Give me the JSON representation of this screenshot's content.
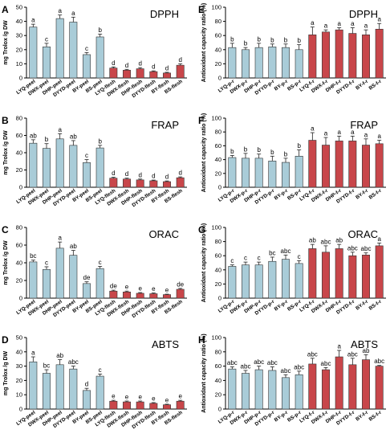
{
  "colors": {
    "peel": "#a9ccd8",
    "flesh": "#c8464a",
    "stroke": "#333333"
  },
  "chart_data": [
    {
      "panel": "A",
      "title": "DPPH",
      "type": "bar",
      "ylabel": "mg Trolox /g DW",
      "ylim": [
        0,
        50
      ],
      "yticks": [
        0,
        10,
        20,
        30,
        40,
        50
      ],
      "categories": [
        "LYQ-peel",
        "DWX-peel",
        "DHP-peel",
        "DYYD-peel",
        "BY-peel",
        "BS-peel",
        "LYQ-flesh",
        "DWX-flesh",
        "DHP-flesh",
        "DYYD-flesh",
        "BY-flesh",
        "BS-flesh"
      ],
      "values": [
        36,
        22,
        42,
        39.5,
        16.5,
        29,
        7,
        5.5,
        6.5,
        4.5,
        3.5,
        9
      ],
      "errors": [
        2,
        2.5,
        2.5,
        3.5,
        1.5,
        2,
        0.8,
        0.6,
        0.8,
        0.5,
        0.5,
        1
      ],
      "labels": [
        "a",
        "c",
        "a",
        "a",
        "c",
        "b",
        "d",
        "d",
        "d",
        "d",
        "d",
        "d"
      ]
    },
    {
      "panel": "B",
      "title": "FRAP",
      "type": "bar",
      "ylabel": "mg Trolox /g DW",
      "ylim": [
        0,
        80
      ],
      "yticks": [
        0,
        20,
        40,
        60,
        80
      ],
      "categories": [
        "LYQ-peel",
        "DWX-peel",
        "DHP-peel",
        "DYYD-peel",
        "BY-peel",
        "BS-peel",
        "LYQ-flesh",
        "DWX-flesh",
        "DHP-flesh",
        "DYYD-flesh",
        "BY-flesh",
        "BS-flesh"
      ],
      "values": [
        51,
        45,
        56,
        48.5,
        28.5,
        45.5,
        10.5,
        9.5,
        8.5,
        7.5,
        6.5,
        11
      ],
      "errors": [
        4,
        5.5,
        6,
        5.5,
        3.5,
        3,
        1,
        1,
        1,
        0.8,
        0.8,
        1
      ],
      "labels": [
        "ab",
        "b",
        "a",
        "ab",
        "c",
        "b",
        "d",
        "d",
        "d",
        "d",
        "d",
        "d"
      ]
    },
    {
      "panel": "C",
      "title": "ORAC",
      "type": "bar",
      "ylabel": "mg Trolox /g DW",
      "ylim": [
        0,
        80
      ],
      "yticks": [
        0,
        20,
        40,
        60,
        80
      ],
      "categories": [
        "LYQ-peel",
        "DWX-peel",
        "DHP-peel",
        "DYYD-peel",
        "BY-peel",
        "BS-peel",
        "LYQ-flesh",
        "DWX-flesh",
        "DHP-flesh",
        "DYYD-flesh",
        "BY-flesh",
        "BS-flesh"
      ],
      "values": [
        41,
        32.5,
        56.5,
        48.5,
        16.5,
        33.5,
        8,
        7,
        5.5,
        5,
        4,
        10
      ],
      "errors": [
        2,
        3,
        7,
        5.5,
        2,
        2.5,
        1,
        1,
        0.8,
        0.8,
        0.5,
        1
      ],
      "labels": [
        "bc",
        "c",
        "a",
        "ab",
        "de",
        "c",
        "de",
        "e",
        "e",
        "e",
        "e",
        "de"
      ]
    },
    {
      "panel": "D",
      "title": "ABTS",
      "type": "bar",
      "ylabel": "mg Trolox /g DW",
      "ylim": [
        0,
        50
      ],
      "yticks": [
        0,
        10,
        20,
        30,
        40,
        50
      ],
      "categories": [
        "LYQ-peel",
        "DWX-peel",
        "DHP-peel",
        "DYYD-peel",
        "BY-peel",
        "BS-peel",
        "LYQ-flesh",
        "DWX-flesh",
        "DHP-flesh",
        "DYYD-flesh",
        "BY-flesh",
        "BS-flesh"
      ],
      "values": [
        33,
        25,
        31,
        28,
        13,
        23,
        5.5,
        5,
        5,
        4,
        3,
        5.5
      ],
      "errors": [
        3.5,
        2.5,
        3.5,
        2,
        1.5,
        1.5,
        0.6,
        0.6,
        0.6,
        0.5,
        0.4,
        0.6
      ],
      "labels": [
        "a",
        "bc",
        "ab",
        "abc",
        "d",
        "c",
        "e",
        "e",
        "e",
        "e",
        "e",
        "e"
      ]
    },
    {
      "panel": "E",
      "title": "DPPH",
      "type": "bar",
      "ylabel": "Antioxidant capacity ratio (%)",
      "ylim": [
        0,
        100
      ],
      "yticks": [
        0,
        20,
        40,
        60,
        80,
        100
      ],
      "categories": [
        "LYQ-p-r",
        "DWX-p-r",
        "DHP-p-r",
        "DYYD-p-r",
        "BY-p-r",
        "BS-p-r",
        "LYQ-f-r",
        "DWX-f-r",
        "DHP-f-r",
        "DYYD-f-r",
        "BY-f-r",
        "BS-f-r"
      ],
      "values": [
        43,
        40,
        43,
        44,
        43,
        40,
        61,
        65,
        68,
        63,
        61,
        69
      ],
      "errors": [
        6,
        3,
        6,
        4,
        5,
        7,
        11,
        3,
        3,
        8,
        7,
        8
      ],
      "labels": [
        "b",
        "b",
        "b",
        "b",
        "b",
        "b",
        "a",
        "a",
        "a",
        "a",
        "a",
        "a"
      ]
    },
    {
      "panel": "F",
      "title": "FRAP",
      "type": "bar",
      "ylabel": "Antioxidant capacity ratio (%)",
      "ylim": [
        0,
        100
      ],
      "yticks": [
        0,
        20,
        40,
        60,
        80,
        100
      ],
      "categories": [
        "LYQ-p-r",
        "DWX-p-r",
        "DHP-p-r",
        "DYYD-p-r",
        "BY-p-r",
        "BS-p-r",
        "LYQ-f-r",
        "DWX-f-r",
        "DHP-f-r",
        "DYYD-f-r",
        "BY-f-r",
        "BS-f-r"
      ],
      "values": [
        43,
        42,
        42,
        38,
        36,
        45,
        68,
        61,
        67,
        67,
        61,
        63
      ],
      "errors": [
        3,
        7,
        6,
        7,
        6,
        9,
        11,
        11,
        7,
        7,
        9,
        5
      ],
      "labels": [
        "b",
        "b",
        "b",
        "b",
        "b",
        "b",
        "a",
        "a",
        "a",
        "a",
        "a",
        "a"
      ]
    },
    {
      "panel": "G",
      "title": "ORAC",
      "type": "bar",
      "ylabel": "Antioxidant capacity ratio (%)",
      "ylim": [
        0,
        100
      ],
      "yticks": [
        0,
        20,
        40,
        60,
        80,
        100
      ],
      "categories": [
        "LYQ-p-r",
        "DWX-p-r",
        "DHP-p-r",
        "DYYD-p-r",
        "BY-p-r",
        "BS-p-r",
        "LYQ-f-r",
        "DWX-f-r",
        "DHP-f-r",
        "DYYD-f-r",
        "BY-f-r",
        "BS-f-r"
      ],
      "values": [
        45,
        47,
        47,
        52,
        55,
        49,
        70,
        65,
        70,
        60,
        61,
        74
      ],
      "errors": [
        2,
        4,
        4,
        6,
        6,
        4,
        6,
        9,
        6,
        5,
        3,
        4
      ],
      "labels": [
        "c",
        "c",
        "c",
        "bc",
        "abc",
        "c",
        "ab",
        "abc",
        "ab",
        "abc",
        "abc",
        "a"
      ]
    },
    {
      "panel": "H",
      "title": "ABTS",
      "type": "bar",
      "ylabel": "Antioxidant capacity ratio (%)",
      "ylim": [
        0,
        100
      ],
      "yticks": [
        0,
        20,
        40,
        60,
        80,
        100
      ],
      "categories": [
        "LYQ-p-r",
        "DWX-p-r",
        "DHP-p-r",
        "DYYD-p-r",
        "BY-p-r",
        "BS-p-r",
        "LYQ-f-r",
        "DWX-f-r",
        "DHP-f-r",
        "DYYD-f-r",
        "BY-f-r",
        "BS-f-r"
      ],
      "values": [
        56,
        50,
        55,
        54,
        44,
        48,
        63,
        55,
        73,
        62,
        69,
        60
      ],
      "errors": [
        3,
        4,
        5,
        5,
        4,
        5,
        8,
        3,
        9,
        9,
        7,
        1
      ],
      "labels": [
        "abc",
        "abc",
        "abc",
        "abc",
        "abc",
        "abc",
        "abc",
        "abc",
        "a",
        "abc",
        "ab",
        "abc"
      ]
    }
  ]
}
